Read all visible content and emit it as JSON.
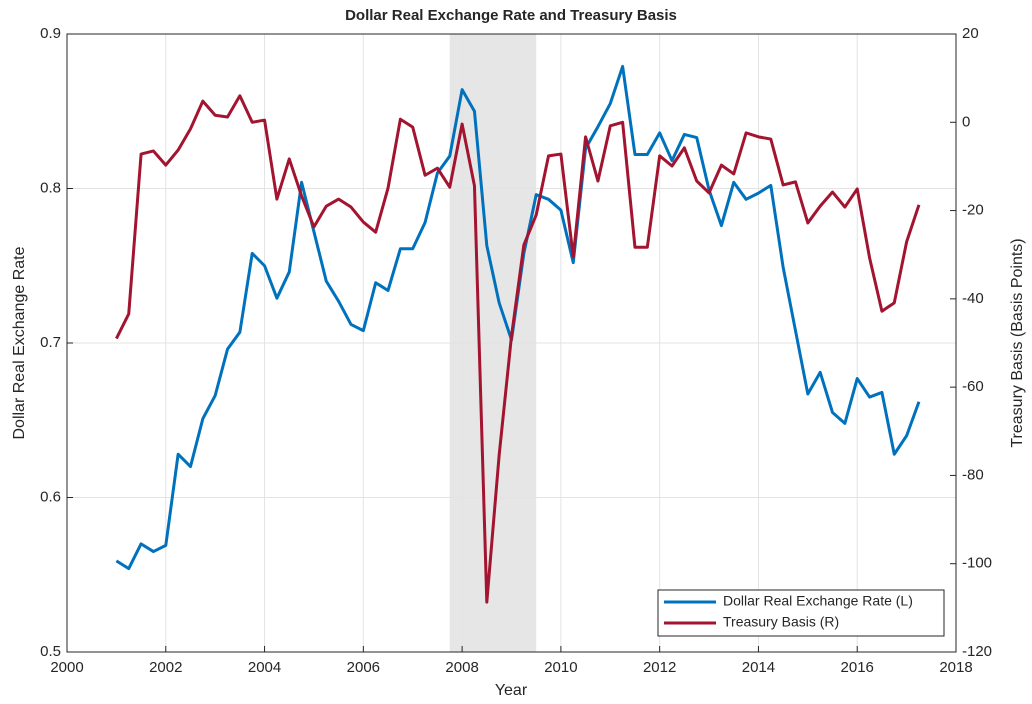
{
  "chart_data": {
    "type": "line",
    "title": "Dollar Real Exchange Rate and Treasury Basis",
    "xlabel": "Year",
    "ylabel": "Dollar Real Exchange Rate",
    "y2label": "Treasury Basis (Basis Points)",
    "x": [
      2001,
      2001.25,
      2001.5,
      2001.75,
      2002,
      2002.25,
      2002.5,
      2002.75,
      2003,
      2003.25,
      2003.5,
      2003.75,
      2004,
      2004.25,
      2004.5,
      2004.75,
      2005,
      2005.25,
      2005.5,
      2005.75,
      2006,
      2006.25,
      2006.5,
      2006.75,
      2007,
      2007.25,
      2007.5,
      2007.75,
      2008,
      2008.25,
      2008.5,
      2008.75,
      2009,
      2009.25,
      2009.5,
      2009.75,
      2010,
      2010.25,
      2010.5,
      2010.75,
      2011,
      2011.25,
      2011.5,
      2011.75,
      2012,
      2012.25,
      2012.5,
      2012.75,
      2013,
      2013.25,
      2013.5,
      2013.75,
      2014,
      2014.25,
      2014.5,
      2014.75,
      2015,
      2015.25,
      2015.5,
      2015.75,
      2016,
      2016.25,
      2016.5,
      2016.75,
      2017,
      2017.25
    ],
    "series": [
      {
        "name": "Dollar Real Exchange Rate (L)",
        "color": "#0072BD",
        "axis": "y",
        "values": [
          0.559,
          0.554,
          0.57,
          0.565,
          0.569,
          0.628,
          0.62,
          0.651,
          0.666,
          0.696,
          0.707,
          0.758,
          0.75,
          0.729,
          0.746,
          0.804,
          0.772,
          0.74,
          0.727,
          0.712,
          0.708,
          0.739,
          0.734,
          0.761,
          0.761,
          0.778,
          0.81,
          0.821,
          0.864,
          0.85,
          0.763,
          0.726,
          0.702,
          0.758,
          0.796,
          0.793,
          0.786,
          0.752,
          0.826,
          0.84,
          0.855,
          0.879,
          0.822,
          0.822,
          0.836,
          0.818,
          0.835,
          0.833,
          0.799,
          0.776,
          0.804,
          0.793,
          0.797,
          0.802,
          0.749,
          0.708,
          0.667,
          0.681,
          0.655,
          0.648,
          0.677,
          0.665,
          0.668,
          0.628,
          0.64,
          0.662
        ]
      },
      {
        "name": "Treasury Basis (R)",
        "color": "#A2142F",
        "axis": "y2",
        "values": [
          -49,
          -43.4,
          -7.2,
          -6.5,
          -9.7,
          -6.3,
          -1.5,
          4.8,
          1.6,
          1.2,
          6,
          0,
          0.5,
          -17.4,
          -8.3,
          -16.7,
          -23.7,
          -19,
          -17.4,
          -19.2,
          -22.6,
          -24.9,
          -14.9,
          0.7,
          -1.1,
          -12,
          -10.4,
          -14.7,
          -0.4,
          -14.4,
          -108.7,
          -75.4,
          -48.4,
          -27.8,
          -21,
          -7.6,
          -7.2,
          -30.5,
          -3.3,
          -13.3,
          -0.8,
          0,
          -28.3,
          -28.3,
          -7.6,
          -9.9,
          -5.8,
          -13.3,
          -16,
          -9.7,
          -11.7,
          -2.4,
          -3.3,
          -3.8,
          -14.2,
          -13.5,
          -22.8,
          -19,
          -15.8,
          -19.2,
          -15.1,
          -30.7,
          -42.8,
          -40.9,
          -27.1,
          -18.7
        ]
      }
    ],
    "xlim": [
      2000,
      2018
    ],
    "xticks": [
      2000,
      2002,
      2004,
      2006,
      2008,
      2010,
      2012,
      2014,
      2016,
      2018
    ],
    "ylim": [
      0.5,
      0.9
    ],
    "yticks": [
      0.5,
      0.6,
      0.7,
      0.8,
      0.9
    ],
    "y2lim": [
      -120,
      20
    ],
    "y2ticks": [
      -120,
      -100,
      -80,
      -60,
      -40,
      -20,
      0,
      20
    ],
    "shaded_region": [
      2007.75,
      2009.5
    ],
    "shaded_color": "#e6e6e6",
    "grid": true,
    "legend": "lower right"
  }
}
